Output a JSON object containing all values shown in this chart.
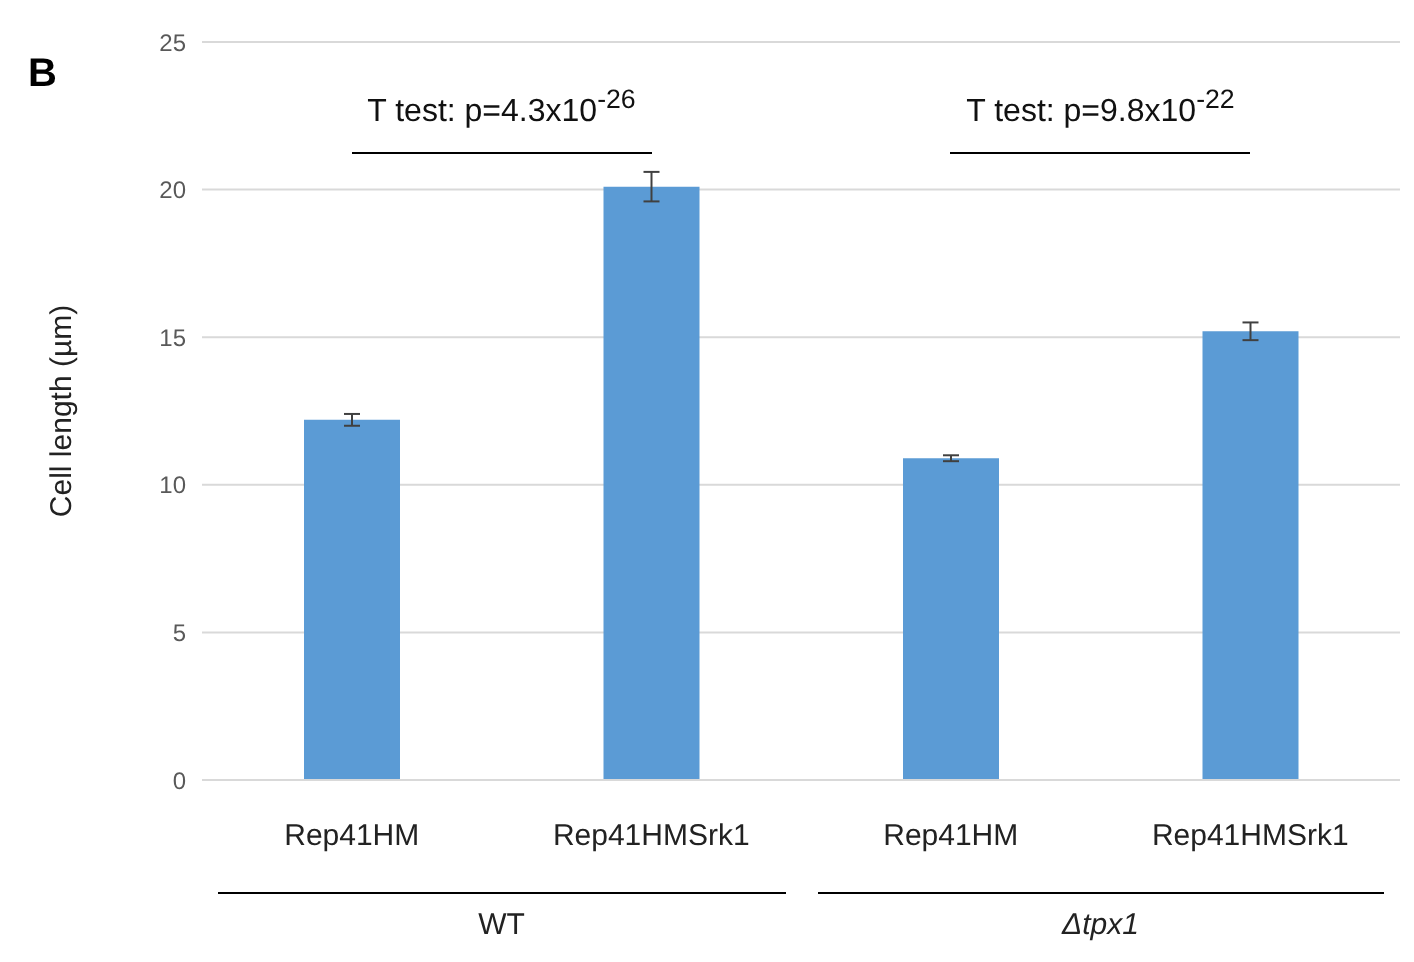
{
  "chart_data": {
    "type": "bar",
    "categories": [
      "Rep41HM",
      "Rep41HMSrk1",
      "Rep41HM",
      "Rep41HMSrk1"
    ],
    "values": [
      12.2,
      20.1,
      10.9,
      15.2
    ],
    "errors": [
      0.2,
      0.5,
      0.1,
      0.3
    ],
    "color": "#5b9bd5",
    "ylabel": "Cell length (µm)",
    "ylim": [
      0,
      25
    ],
    "yticks": [
      0,
      5,
      10,
      15,
      20,
      25
    ],
    "grid": "y",
    "legend": false,
    "annotations": [
      "T test: p=4.3x10$^{-26}$",
      "T test: p=9.8x10$^{-22}$",
      "WT",
      "Δtpx1",
      "B"
    ]
  }
}
